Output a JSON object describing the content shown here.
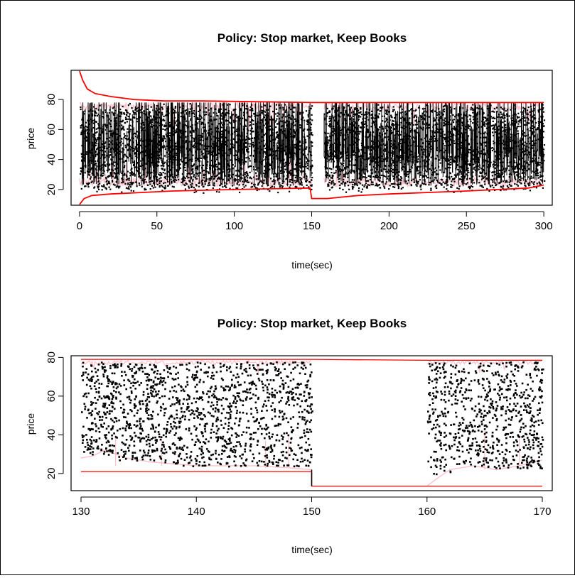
{
  "chart_data": [
    {
      "type": "scatter",
      "title": "Policy: Stop market, Keep Books",
      "xlabel": "time(sec)",
      "ylabel": "price",
      "xlim": [
        -5,
        305
      ],
      "ylim": [
        10,
        99
      ],
      "x_ticks": [
        "0",
        "50",
        "100",
        "150",
        "200",
        "250",
        "300"
      ],
      "y_ticks": [
        "20",
        "40",
        "60",
        "80"
      ],
      "grid": false,
      "gap": [
        150,
        158
      ],
      "colors": {
        "points": "#000000",
        "quotes": "#ffc0cb",
        "bounds": "#ff0000"
      },
      "series": [
        {
          "values": [
            [
              0,
              99
            ],
            [
              2,
              93
            ],
            [
              5,
              87
            ],
            [
              10,
              84
            ],
            [
              20,
              82
            ],
            [
              35,
              80
            ],
            [
              55,
              79
            ],
            [
              80,
              79
            ],
            [
              150,
              78
            ],
            [
              300,
              78
            ]
          ]
        },
        {
          "values": [
            [
              0,
              10
            ],
            [
              3,
              14
            ],
            [
              8,
              16
            ],
            [
              20,
              17
            ],
            [
              40,
              18
            ],
            [
              60,
              19
            ],
            [
              100,
              20
            ],
            [
              149,
              21
            ],
            [
              150,
              14
            ],
            [
              155,
              14
            ],
            [
              160,
              14
            ],
            [
              180,
              16
            ],
            [
              200,
              17
            ],
            [
              250,
              19
            ],
            [
              290,
              21
            ],
            [
              300,
              23
            ]
          ]
        },
        {
          "x_range": [
            0,
            300
          ],
          "y_range": [
            18,
            78
          ],
          "density": "dense"
        }
      ]
    },
    {
      "type": "scatter",
      "title": "Policy: Stop market, Keep Books",
      "xlabel": "time(sec)",
      "ylabel": "price",
      "xlim": [
        129.2,
        170.8
      ],
      "ylim": [
        11.5,
        80.5
      ],
      "x_ticks": [
        "130",
        "140",
        "150",
        "160",
        "170"
      ],
      "y_ticks": [
        "20",
        "40",
        "60",
        "80"
      ],
      "grid": false,
      "gap": [
        150,
        160
      ],
      "colors": {
        "points": "#000000",
        "quotes": "#ffc0cb",
        "bounds": "#ff0000"
      },
      "series": [
        {
          "values": [
            [
              130,
              79
            ],
            [
              150,
              79
            ],
            [
              160,
              78.5
            ],
            [
              170,
              78.5
            ]
          ]
        },
        {
          "values": [
            [
              130,
              21
            ],
            [
              150,
              21
            ],
            [
              150,
              13.5
            ],
            [
              160,
              13.5
            ],
            [
              161.5,
              13.5
            ],
            [
              170,
              13.5
            ]
          ]
        },
        {
          "values": [
            [
              130,
              28
            ],
            [
              131,
              29
            ],
            [
              132,
              32
            ],
            [
              134,
              28
            ],
            [
              136,
              26
            ],
            [
              140,
              24
            ],
            [
              145,
              24
            ],
            [
              148,
              23
            ],
            [
              150,
              22
            ],
            [
              150,
              13.5
            ],
            [
              160,
              13.5
            ],
            [
              161,
              18
            ],
            [
              162,
              22
            ],
            [
              164,
              24
            ],
            [
              166,
              22
            ],
            [
              168,
              24
            ],
            [
              170,
              27
            ]
          ]
        },
        {
          "x_range": [
            130,
            150
          ],
          "y_range": [
            22,
            78
          ],
          "density": "medium"
        },
        {
          "x_range": [
            160,
            170
          ],
          "y_range": [
            20,
            78
          ],
          "density": "medium"
        }
      ]
    }
  ]
}
